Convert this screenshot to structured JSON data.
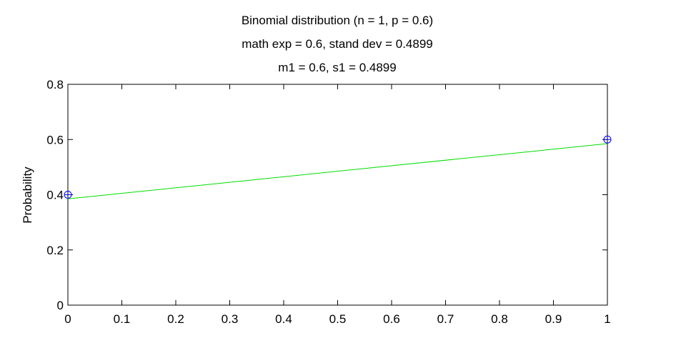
{
  "chart_data": {
    "type": "scatter",
    "title_lines": [
      "Binomial distribution (n = 1, p = 0.6)",
      "math exp = 0.6, stand dev = 0.4899",
      "m1 = 0.6, s1 = 0.4899"
    ],
    "xlabel": "",
    "ylabel": "Probability",
    "xlim": [
      0,
      1
    ],
    "ylim": [
      0,
      0.8
    ],
    "xticks": [
      0,
      0.1,
      0.2,
      0.3,
      0.4,
      0.5,
      0.6,
      0.7,
      0.8,
      0.9,
      1
    ],
    "xtick_labels": [
      "0",
      "0.1",
      "0.2",
      "0.3",
      "0.4",
      "0.5",
      "0.6",
      "0.7",
      "0.8",
      "0.9",
      "1"
    ],
    "yticks": [
      0,
      0.2,
      0.4,
      0.6,
      0.8
    ],
    "ytick_labels": [
      "0",
      "0.2",
      "0.4",
      "0.6",
      "0.8"
    ],
    "grid": false,
    "series": [
      {
        "kind": "markers",
        "marker": "circle",
        "color": "#0000ff",
        "x": [
          0,
          1
        ],
        "y": [
          0.4,
          0.6
        ]
      },
      {
        "kind": "line",
        "color": "#00dd00",
        "x": [
          0,
          1
        ],
        "y": [
          0.385,
          0.585
        ]
      }
    ]
  }
}
